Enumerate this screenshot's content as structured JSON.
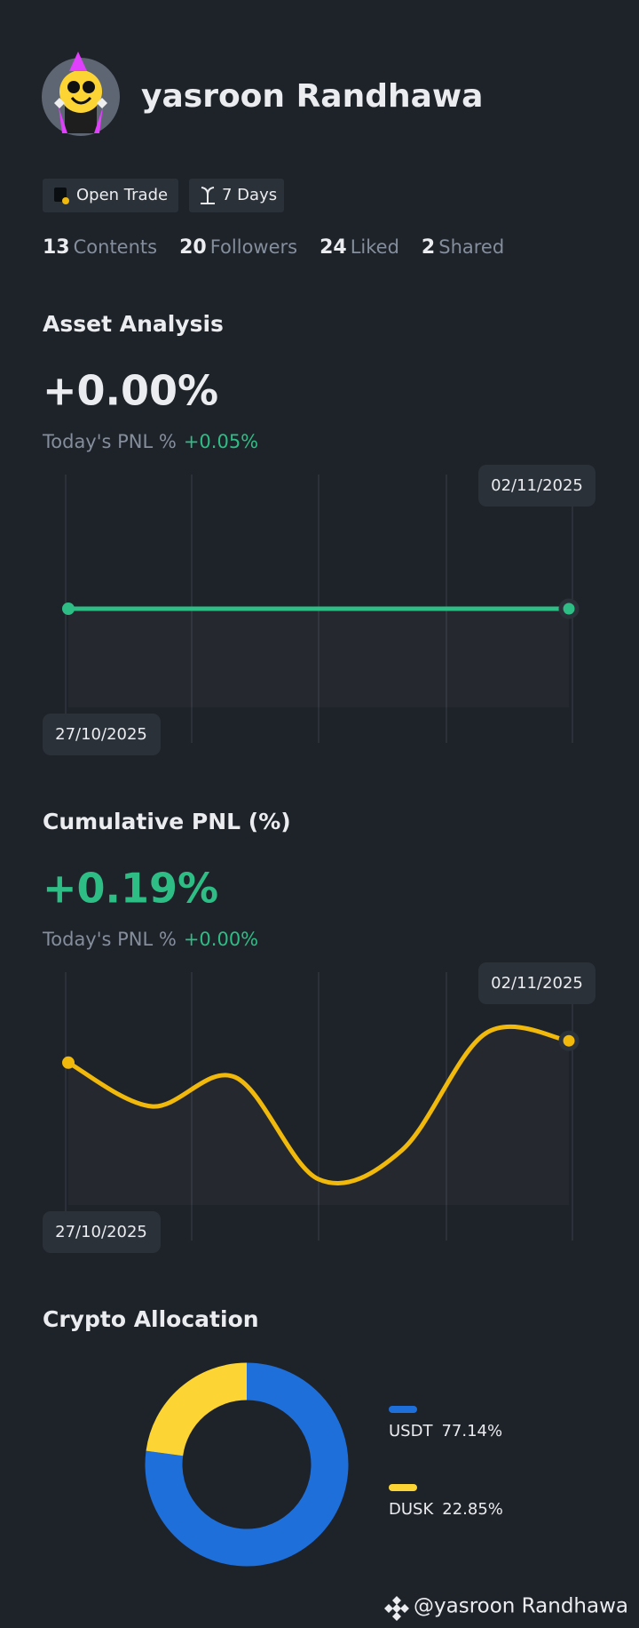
{
  "profile": {
    "name": "yasroon Randhawa",
    "badges": [
      "Open Trade",
      "7 Days"
    ],
    "stats": [
      {
        "count": "13",
        "label": "Contents"
      },
      {
        "count": "20",
        "label": "Followers"
      },
      {
        "count": "24",
        "label": "Liked"
      },
      {
        "count": "2",
        "label": "Shared"
      }
    ],
    "watermark": "@yasroon Randhawa"
  },
  "chart_data": [
    {
      "type": "line",
      "title": "Asset Analysis",
      "headline": "+0.00%",
      "pnl_label": "Today's PNL %",
      "pnl_value": "+0.05%",
      "categories": [
        "27/10/2025",
        null,
        null,
        null,
        null,
        null,
        "02/11/2025"
      ],
      "values": [
        0,
        0,
        0,
        0,
        0,
        0,
        0
      ],
      "color": "#2ebd85",
      "headline_color": "#eaecef"
    },
    {
      "type": "line",
      "title": "Cumulative PNL (%)",
      "headline": "+0.19%",
      "pnl_label": "Today's PNL %",
      "pnl_value": "+0.00%",
      "categories": [
        "27/10/2025",
        null,
        null,
        null,
        null,
        null,
        "02/11/2025"
      ],
      "values": [
        0.16,
        0.1,
        0.14,
        0.0,
        0.04,
        0.2,
        0.19
      ],
      "color": "#f0b90b",
      "headline_color": "#2ebd85"
    },
    {
      "type": "pie",
      "title": "Crypto Allocation",
      "categories": [
        "USDT",
        "DUSK"
      ],
      "values": [
        77.14,
        22.85
      ],
      "value_labels": [
        "77.14%",
        "22.85%"
      ],
      "colors": [
        "#1e6fd9",
        "#fcd535"
      ]
    }
  ]
}
